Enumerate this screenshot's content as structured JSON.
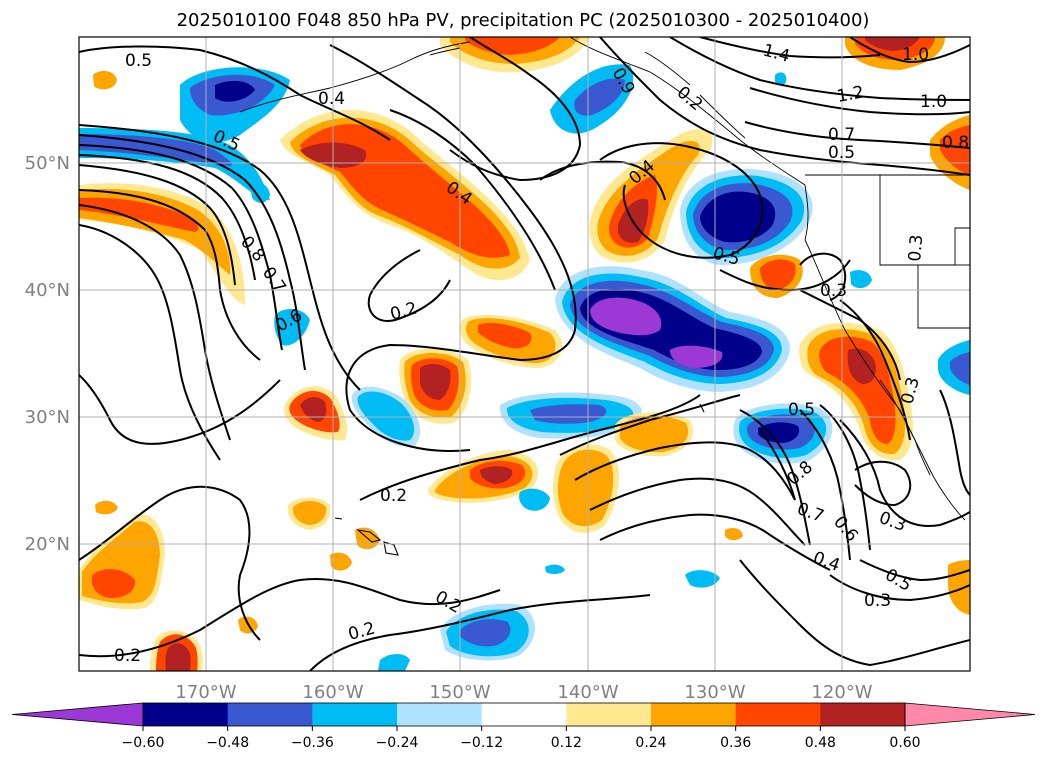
{
  "title": "2025010100 F048 850 hPa PV, precipitation PC (2025010300 - 2025010400)",
  "map": {
    "lon_range": [
      -180,
      -110
    ],
    "lat_range": [
      10,
      60
    ],
    "lon_ticks": [
      "170°W",
      "160°W",
      "150°W",
      "140°W",
      "130°W",
      "120°W"
    ],
    "lat_ticks": [
      "50°N",
      "40°N",
      "30°N",
      "20°N"
    ],
    "grid": true,
    "fill_field": "precipitation PC",
    "contour_field": "850 hPa PV"
  },
  "contour_labels": [
    "0.5",
    "0.4",
    "0.5",
    "0.8",
    "0.7",
    "0.6",
    "0.2",
    "0.4",
    "0.2",
    "0.2",
    "0.2",
    "0.2",
    "0.9",
    "0.4",
    "1.4",
    "1.2",
    "1.0",
    "1.0",
    "0.7",
    "0.5",
    "0.8",
    "0.5",
    "0.3",
    "0.3",
    "0.3",
    "0.5",
    "0.8",
    "0.7",
    "0.6",
    "0.4",
    "0.3",
    "0.5",
    "0.3",
    "0.2"
  ],
  "colorbar": {
    "ticks": [
      "−0.60",
      "−0.48",
      "−0.36",
      "−0.24",
      "−0.12",
      "0.12",
      "0.24",
      "0.36",
      "0.48",
      "0.60"
    ],
    "colors": [
      "#9b38d6",
      "#00008b",
      "#3a59d0",
      "#00bcf5",
      "#b0e2ff",
      "#ffffff",
      "#ffe890",
      "#ffa500",
      "#ff4500",
      "#b22222",
      "#ff88aa"
    ],
    "extend": "both"
  }
}
